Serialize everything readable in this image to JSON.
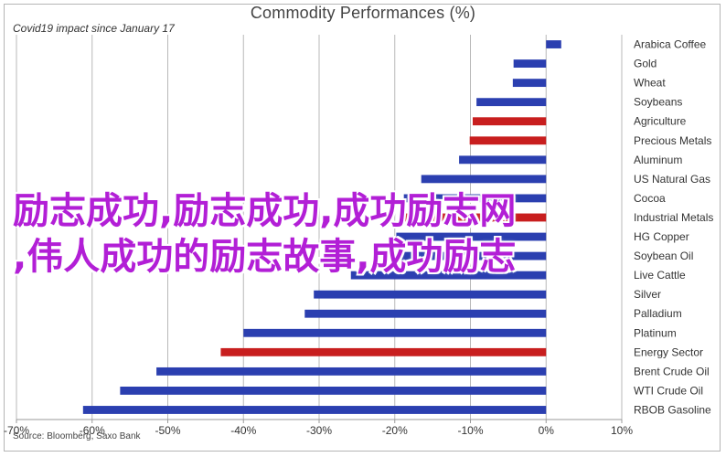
{
  "chart_data": {
    "type": "bar",
    "orientation": "horizontal",
    "title": "Commodity Performances (%)",
    "subtitle": "Covid19 impact since January 17",
    "source": "Source: Bloomberg, Saxo Bank",
    "xlim": [
      -70,
      10
    ],
    "xticks": [
      -70,
      -60,
      -50,
      -40,
      -30,
      -20,
      -10,
      0,
      10
    ],
    "xtick_labels": [
      "-70%",
      "-60%",
      "-50%",
      "-40%",
      "-30%",
      "-20%",
      "-10%",
      "0%",
      "10%"
    ],
    "grid": "vertical",
    "colors": {
      "blue": "#2b3fb0",
      "red": "#c81e1e"
    },
    "categories": [
      "Arabica Coffee",
      "Gold",
      "Wheat",
      "Soybeans",
      "Agriculture",
      "Precious Metals",
      "Aluminum",
      "US Natural Gas",
      "Cocoa",
      "Industrial Metals",
      "HG Copper",
      "Soybean Oil",
      "Live Cattle",
      "Silver",
      "Palladium",
      "Platinum",
      "Energy Sector",
      "Brent Crude Oil",
      "WTI Crude Oil",
      "RBOB Gasoline"
    ],
    "values": [
      2.0,
      -4.3,
      -4.4,
      -9.2,
      -9.7,
      -10.1,
      -11.5,
      -16.5,
      -18.8,
      -19.0,
      -19.8,
      -20.7,
      -25.8,
      -30.7,
      -31.9,
      -40.0,
      -43.0,
      -51.5,
      -56.3,
      -61.2
    ],
    "bar_colors": [
      "blue",
      "blue",
      "blue",
      "blue",
      "red",
      "red",
      "blue",
      "blue",
      "blue",
      "red",
      "blue",
      "blue",
      "blue",
      "blue",
      "blue",
      "blue",
      "red",
      "blue",
      "blue",
      "blue"
    ]
  },
  "overlay": {
    "line1": "励志成功,励志成功,成功励志网",
    "line2": ",伟人成功的励志故事,成功励志"
  }
}
